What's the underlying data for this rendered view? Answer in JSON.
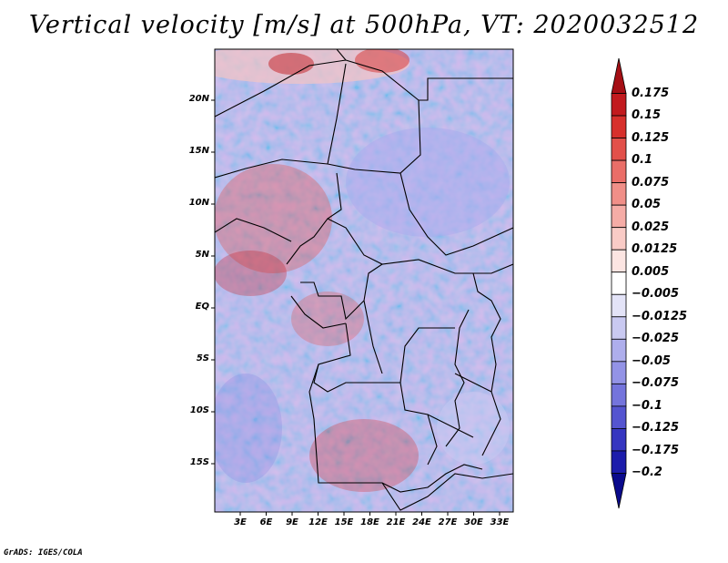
{
  "title": "Vertical velocity [m/s] at 500hPa, VT: 2020032512",
  "credit": "GrADS: IGES/COLA",
  "axes": {
    "lat_labels": [
      "20N",
      "15N",
      "10N",
      "5N",
      "EQ",
      "5S",
      "10S",
      "15S"
    ],
    "lat_values": [
      20,
      15,
      10,
      5,
      0,
      -5,
      -10,
      -15
    ],
    "lon_labels": [
      "3E",
      "6E",
      "9E",
      "12E",
      "15E",
      "18E",
      "21E",
      "24E",
      "27E",
      "30E",
      "33E"
    ],
    "lon_values": [
      3,
      6,
      9,
      12,
      15,
      18,
      21,
      24,
      27,
      30,
      33
    ]
  },
  "colorbar": {
    "labels": [
      "0.175",
      "0.15",
      "0.125",
      "0.1",
      "0.075",
      "0.05",
      "0.025",
      "0.0125",
      "0.005",
      "−0.005",
      "−0.0125",
      "−0.025",
      "−0.05",
      "−0.075",
      "−0.1",
      "−0.125",
      "−0.175",
      "−0.2"
    ],
    "colors": [
      "#a50f15",
      "#c21a1e",
      "#d7302c",
      "#e2504a",
      "#ea6e68",
      "#f08f88",
      "#f5aca6",
      "#f9cbc6",
      "#fce5e2",
      "#ffffff",
      "#e3e3f7",
      "#c9c9f1",
      "#aeaeec",
      "#9393e6",
      "#7474dc",
      "#5454d0",
      "#3636c0",
      "#1c1cab",
      "#0a0a8c"
    ]
  }
}
